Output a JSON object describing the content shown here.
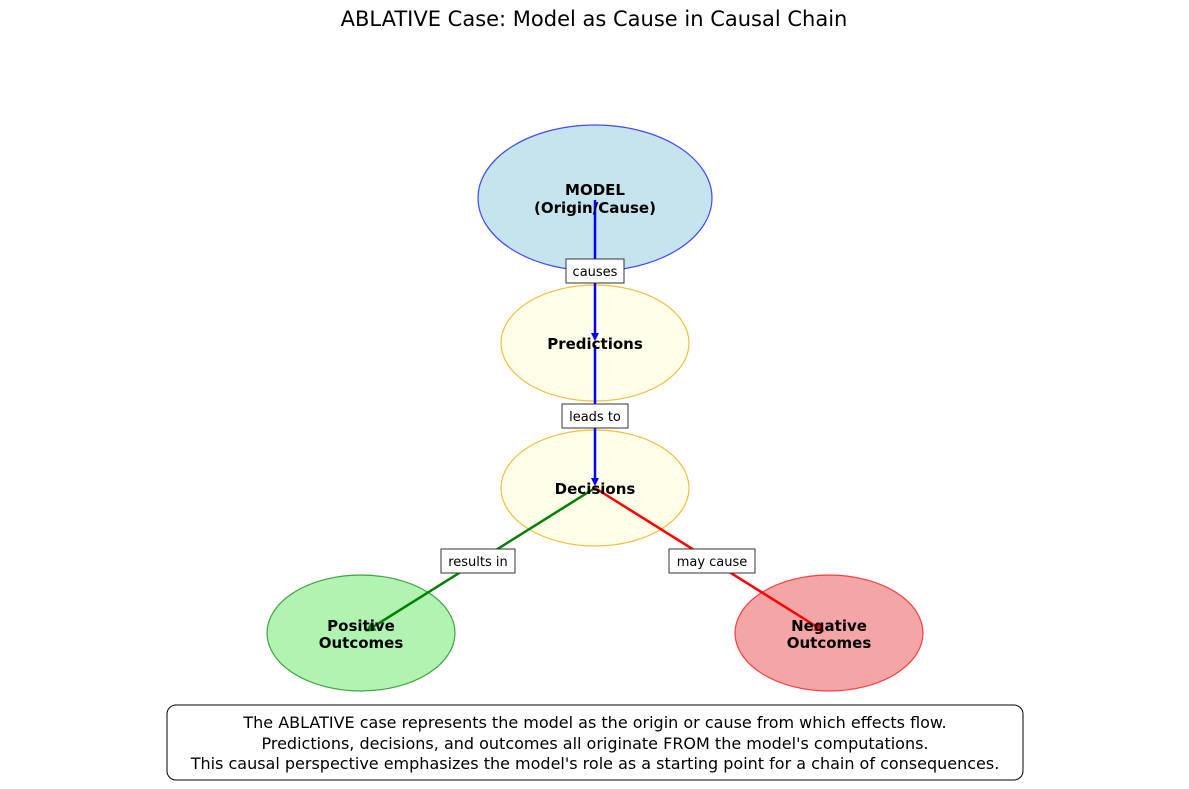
{
  "title": "ABLATIVE Case: Model as Cause in Causal Chain",
  "nodes": {
    "model": {
      "line1": "MODEL",
      "line2": "(Origin/Cause)",
      "fill": "#add8e6",
      "stroke": "#0000ff"
    },
    "predictions": {
      "label": "Predictions",
      "fill": "#ffffe0",
      "stroke": "#f0a800"
    },
    "decisions": {
      "label": "Decisions",
      "fill": "#ffffe0",
      "stroke": "#f0a800"
    },
    "positive": {
      "line1": "Positive",
      "line2": "Outcomes",
      "fill": "#90ee90",
      "stroke": "#008000"
    },
    "negative": {
      "line1": "Negative",
      "line2": "Outcomes",
      "fill": "#f08080",
      "stroke": "#ff0000"
    }
  },
  "edges": {
    "causes": {
      "label": "causes",
      "color": "#0000ff"
    },
    "leads_to": {
      "label": "leads to",
      "color": "#0000ff"
    },
    "results_in": {
      "label": "results in",
      "color": "#008000"
    },
    "may_cause": {
      "label": "may cause",
      "color": "#ff0000"
    }
  },
  "caption": {
    "line1": "The ABLATIVE case represents the model as the origin or cause from which effects flow.",
    "line2": "Predictions, decisions, and outcomes all originate FROM the model's computations.",
    "line3": "This causal perspective emphasizes the model's role as a starting point for a chain of consequences."
  }
}
